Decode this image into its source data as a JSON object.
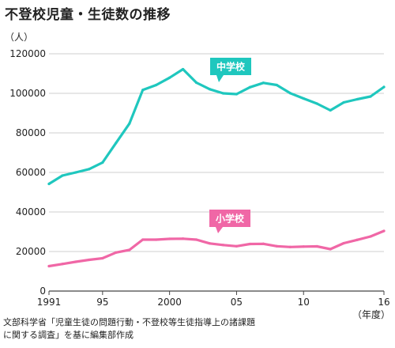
{
  "chart_data": {
    "type": "line",
    "title": "不登校児童・生徒数の推移",
    "unit_label": "（人）",
    "x_unit": "（年度）",
    "x": [
      1991,
      1992,
      1993,
      1994,
      1995,
      1996,
      1997,
      1998,
      1999,
      2000,
      2001,
      2002,
      2003,
      2004,
      2005,
      2006,
      2007,
      2008,
      2009,
      2010,
      2011,
      2012,
      2013,
      2014,
      2015,
      2016
    ],
    "x_ticks": [
      {
        "value": 1991,
        "label": "1991"
      },
      {
        "value": 1995,
        "label": "95"
      },
      {
        "value": 2000,
        "label": "2000"
      },
      {
        "value": 2005,
        "label": "05"
      },
      {
        "value": 2010,
        "label": "10"
      },
      {
        "value": 2016,
        "label": "16"
      }
    ],
    "y_ticks": [
      {
        "value": 0,
        "label": "0"
      },
      {
        "value": 20000,
        "label": "20000"
      },
      {
        "value": 40000,
        "label": "40000"
      },
      {
        "value": 60000,
        "label": "60000"
      },
      {
        "value": 80000,
        "label": "80000"
      },
      {
        "value": 100000,
        "label": "100000"
      },
      {
        "value": 120000,
        "label": "120000"
      }
    ],
    "ylim": [
      0,
      120000
    ],
    "xlim": [
      1991,
      2016
    ],
    "grid": true,
    "series": [
      {
        "name": "中学校",
        "color": "#1fc7be",
        "values": [
          54200,
          58400,
          60000,
          61700,
          65000,
          74900,
          84700,
          101700,
          104200,
          107900,
          112200,
          105400,
          102100,
          100000,
          99600,
          103100,
          105300,
          104200,
          100100,
          97400,
          94800,
          91400,
          95400,
          97000,
          98400,
          103200
        ]
      },
      {
        "name": "小学校",
        "color": "#f067a6",
        "values": [
          12600,
          13700,
          14800,
          15800,
          16600,
          19500,
          20800,
          26000,
          26000,
          26400,
          26500,
          26000,
          24100,
          23300,
          22700,
          23800,
          23900,
          22700,
          22300,
          22500,
          22600,
          21200,
          24200,
          25900,
          27600,
          30400
        ]
      }
    ]
  },
  "source": {
    "line1": "文部科学省「児童生徒の問題行動・不登校等生徒指導上の諸課題",
    "line2": "に関する調査」を基に編集部作成"
  }
}
